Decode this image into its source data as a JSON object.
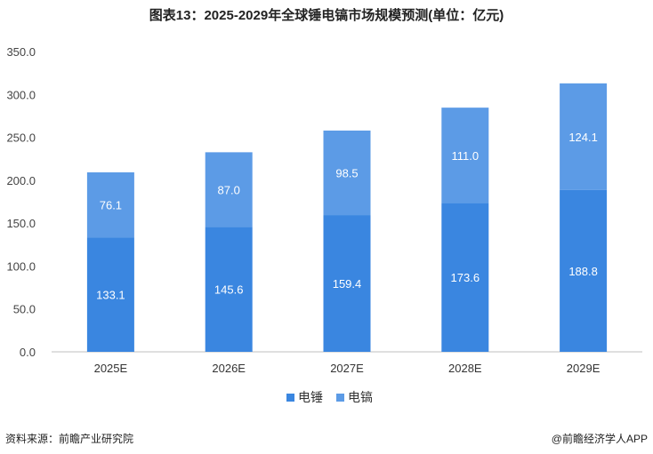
{
  "title": "图表13：2025-2029年全球锤电镐市场规模预测(单位：亿元)",
  "source": "资料来源：前瞻产业研究院",
  "credit": "@前瞻经济学人APP",
  "chart_data": {
    "type": "bar",
    "stacked": true,
    "categories": [
      "2025E",
      "2026E",
      "2027E",
      "2028E",
      "2029E"
    ],
    "series": [
      {
        "name": "电锤",
        "values": [
          133.1,
          145.6,
          159.4,
          173.6,
          188.8
        ],
        "color": "#3a86e0"
      },
      {
        "name": "电镐",
        "values": [
          76.1,
          87.0,
          98.5,
          111.0,
          124.1
        ],
        "color": "#5c9be6"
      }
    ],
    "ylim": [
      0,
      350
    ],
    "yticks": [
      0,
      50,
      100,
      150,
      200,
      250,
      300,
      350
    ],
    "ytick_labels": [
      "0.0",
      "50.0",
      "100.0",
      "150.0",
      "200.0",
      "250.0",
      "300.0",
      "350.0"
    ],
    "value_labels": [
      [
        "133.1",
        "145.6",
        "159.4",
        "173.6",
        "188.8"
      ],
      [
        "76.1",
        "87.0",
        "98.5",
        "111.0",
        "124.1"
      ]
    ],
    "legend_position": "bottom"
  }
}
